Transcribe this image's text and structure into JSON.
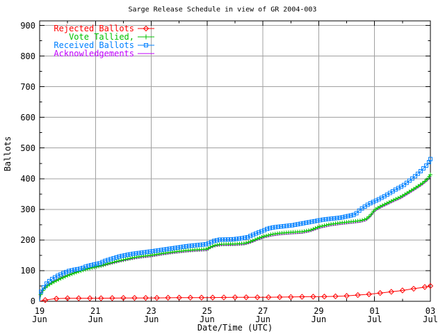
{
  "chart_data": {
    "type": "line",
    "title": "Sarge Release Schedule in view of GR 2004-003",
    "xlabel": "Date/Time (UTC)",
    "ylabel": "Ballots",
    "background": "#ffffff",
    "border_color": "#000000",
    "grid_color": "#a0a0a0",
    "grid": true,
    "legend_position": "top-left",
    "x_unit": "days since 19 Jun 2004 00:00 UTC",
    "xlim_days": [
      0,
      14
    ],
    "ylim": [
      0,
      917
    ],
    "y_ticks": [
      {
        "value": 0,
        "label": "0"
      },
      {
        "value": 100,
        "label": "100"
      },
      {
        "value": 200,
        "label": "200"
      },
      {
        "value": 300,
        "label": "300"
      },
      {
        "value": 400,
        "label": "400"
      },
      {
        "value": 500,
        "label": "500"
      },
      {
        "value": 600,
        "label": "600"
      },
      {
        "value": 700,
        "label": "700"
      },
      {
        "value": 800,
        "label": "800"
      },
      {
        "value": 900,
        "label": "900"
      }
    ],
    "x_ticks": [
      {
        "day": 0,
        "top": "19",
        "bottom": "Jun"
      },
      {
        "day": 2,
        "top": "21",
        "bottom": "Jun"
      },
      {
        "day": 4,
        "top": "23",
        "bottom": "Jun"
      },
      {
        "day": 6,
        "top": "25",
        "bottom": "Jun"
      },
      {
        "day": 8,
        "top": "27",
        "bottom": "Jun"
      },
      {
        "day": 10,
        "top": "29",
        "bottom": "Jun"
      },
      {
        "day": 12,
        "top": "01",
        "bottom": "Jul"
      },
      {
        "day": 14,
        "top": "03",
        "bottom": "Jul"
      }
    ],
    "series": [
      {
        "name": "Rejected Ballots",
        "slug": "rejected-ballots",
        "color": "#ff0000",
        "marker": "diamond",
        "marker_step_days": 0.4,
        "z": 1,
        "points": [
          [
            0,
            0
          ],
          [
            0.08,
            2
          ],
          [
            0.2,
            4
          ],
          [
            0.35,
            6
          ],
          [
            0.5,
            8
          ],
          [
            0.7,
            9
          ],
          [
            1.0,
            10
          ],
          [
            1.6,
            10
          ],
          [
            2.2,
            10
          ],
          [
            3.0,
            11
          ],
          [
            4.0,
            11
          ],
          [
            5.0,
            12
          ],
          [
            6.0,
            12
          ],
          [
            7.0,
            13
          ],
          [
            8.0,
            13
          ],
          [
            9.0,
            14
          ],
          [
            9.6,
            15
          ],
          [
            10.0,
            15
          ],
          [
            10.5,
            16
          ],
          [
            10.9,
            17
          ],
          [
            11.2,
            19
          ],
          [
            11.5,
            21
          ],
          [
            11.8,
            23
          ],
          [
            12.0,
            25
          ],
          [
            12.3,
            28
          ],
          [
            12.6,
            31
          ],
          [
            12.9,
            34
          ],
          [
            13.1,
            37
          ],
          [
            13.4,
            41
          ],
          [
            13.7,
            45
          ],
          [
            13.9,
            48
          ],
          [
            14.0,
            50
          ]
        ]
      },
      {
        "name": "Vote Tallied,",
        "slug": "vote-tallied",
        "color": "#00c000",
        "marker": "plus",
        "marker_step_days": 0.08,
        "z": 3,
        "points": [
          [
            0,
            0
          ],
          [
            0.04,
            22
          ],
          [
            0.15,
            40
          ],
          [
            0.3,
            52
          ],
          [
            0.5,
            63
          ],
          [
            0.75,
            74
          ],
          [
            1.0,
            84
          ],
          [
            1.3,
            94
          ],
          [
            1.6,
            103
          ],
          [
            1.9,
            110
          ],
          [
            2.2,
            116
          ],
          [
            2.5,
            124
          ],
          [
            2.8,
            131
          ],
          [
            3.1,
            137
          ],
          [
            3.4,
            143
          ],
          [
            3.7,
            147
          ],
          [
            4.0,
            150
          ],
          [
            4.4,
            156
          ],
          [
            4.8,
            161
          ],
          [
            5.2,
            165
          ],
          [
            5.6,
            168
          ],
          [
            6.0,
            170
          ],
          [
            6.12,
            177
          ],
          [
            6.3,
            183
          ],
          [
            6.5,
            186
          ],
          [
            7.0,
            187
          ],
          [
            7.35,
            189
          ],
          [
            7.6,
            196
          ],
          [
            7.85,
            206
          ],
          [
            8.05,
            212
          ],
          [
            8.3,
            218
          ],
          [
            8.6,
            222
          ],
          [
            9.0,
            225
          ],
          [
            9.4,
            227
          ],
          [
            9.7,
            232
          ],
          [
            9.9,
            239
          ],
          [
            10.05,
            244
          ],
          [
            10.4,
            251
          ],
          [
            10.8,
            256
          ],
          [
            11.2,
            260
          ],
          [
            11.5,
            263
          ],
          [
            11.7,
            268
          ],
          [
            11.85,
            280
          ],
          [
            12.0,
            298
          ],
          [
            12.2,
            309
          ],
          [
            12.45,
            320
          ],
          [
            12.7,
            331
          ],
          [
            12.95,
            341
          ],
          [
            13.2,
            355
          ],
          [
            13.45,
            369
          ],
          [
            13.7,
            384
          ],
          [
            13.9,
            399
          ],
          [
            14.0,
            413
          ]
        ]
      },
      {
        "name": "Received Ballots",
        "slug": "received-ballots",
        "color": "#0080ff",
        "marker": "square",
        "marker_step_days": 0.1,
        "z": 4,
        "points": [
          [
            0,
            0
          ],
          [
            0.03,
            28
          ],
          [
            0.12,
            42
          ],
          [
            0.25,
            58
          ],
          [
            0.4,
            70
          ],
          [
            0.6,
            81
          ],
          [
            0.85,
            92
          ],
          [
            1.05,
            99
          ],
          [
            1.3,
            104
          ],
          [
            1.5,
            107
          ],
          [
            1.65,
            113
          ],
          [
            1.85,
            118
          ],
          [
            2.0,
            121
          ],
          [
            2.15,
            124
          ],
          [
            2.35,
            132
          ],
          [
            2.6,
            139
          ],
          [
            2.85,
            146
          ],
          [
            3.1,
            151
          ],
          [
            3.35,
            155
          ],
          [
            3.6,
            158
          ],
          [
            3.85,
            161
          ],
          [
            4.1,
            164
          ],
          [
            4.4,
            168
          ],
          [
            4.7,
            172
          ],
          [
            5.0,
            176
          ],
          [
            5.3,
            180
          ],
          [
            5.6,
            183
          ],
          [
            5.85,
            185
          ],
          [
            6.0,
            187
          ],
          [
            6.1,
            191
          ],
          [
            6.25,
            197
          ],
          [
            6.45,
            201
          ],
          [
            6.9,
            202
          ],
          [
            7.2,
            205
          ],
          [
            7.45,
            209
          ],
          [
            7.65,
            217
          ],
          [
            7.85,
            225
          ],
          [
            8.0,
            230
          ],
          [
            8.2,
            238
          ],
          [
            8.45,
            242
          ],
          [
            8.75,
            245
          ],
          [
            9.05,
            248
          ],
          [
            9.35,
            253
          ],
          [
            9.65,
            258
          ],
          [
            9.95,
            263
          ],
          [
            10.2,
            267
          ],
          [
            10.5,
            270
          ],
          [
            10.8,
            273
          ],
          [
            11.1,
            279
          ],
          [
            11.3,
            283
          ],
          [
            11.5,
            300
          ],
          [
            11.7,
            312
          ],
          [
            11.85,
            320
          ],
          [
            12.0,
            326
          ],
          [
            12.2,
            335
          ],
          [
            12.4,
            345
          ],
          [
            12.6,
            356
          ],
          [
            12.8,
            367
          ],
          [
            13.0,
            376
          ],
          [
            13.2,
            390
          ],
          [
            13.4,
            404
          ],
          [
            13.6,
            420
          ],
          [
            13.8,
            438
          ],
          [
            13.93,
            450
          ],
          [
            14.0,
            464
          ]
        ]
      },
      {
        "name": "Acknowledgements",
        "slug": "acknowledgements",
        "color": "#c000ff",
        "marker": "none",
        "marker_step_days": 0,
        "z": 2,
        "points": [
          [
            0,
            0
          ],
          [
            0.04,
            26
          ],
          [
            0.15,
            44
          ],
          [
            0.3,
            55
          ],
          [
            0.5,
            66
          ],
          [
            0.75,
            77
          ],
          [
            1.0,
            86
          ],
          [
            1.3,
            95
          ],
          [
            1.6,
            103
          ],
          [
            1.9,
            109
          ],
          [
            2.2,
            114
          ],
          [
            2.5,
            121
          ],
          [
            2.8,
            128
          ],
          [
            3.1,
            134
          ],
          [
            3.4,
            139
          ],
          [
            3.7,
            143
          ],
          [
            4.0,
            146
          ],
          [
            4.4,
            152
          ],
          [
            4.8,
            157
          ],
          [
            5.2,
            161
          ],
          [
            5.6,
            164
          ],
          [
            6.0,
            166
          ],
          [
            6.12,
            174
          ],
          [
            6.3,
            180
          ],
          [
            6.5,
            182
          ],
          [
            7.0,
            183
          ],
          [
            7.35,
            185
          ],
          [
            7.6,
            192
          ],
          [
            7.85,
            201
          ],
          [
            8.05,
            208
          ],
          [
            8.3,
            213
          ],
          [
            8.6,
            217
          ],
          [
            9.0,
            220
          ],
          [
            9.4,
            222
          ],
          [
            9.7,
            228
          ],
          [
            9.9,
            234
          ],
          [
            10.05,
            239
          ],
          [
            10.4,
            246
          ],
          [
            10.8,
            251
          ],
          [
            11.2,
            255
          ],
          [
            11.5,
            258
          ],
          [
            11.7,
            263
          ],
          [
            11.85,
            275
          ],
          [
            12.0,
            293
          ],
          [
            12.2,
            304
          ],
          [
            12.45,
            315
          ],
          [
            12.7,
            326
          ],
          [
            12.95,
            336
          ],
          [
            13.2,
            350
          ],
          [
            13.45,
            364
          ],
          [
            13.7,
            379
          ],
          [
            13.9,
            394
          ],
          [
            14.0,
            407
          ]
        ]
      }
    ]
  }
}
